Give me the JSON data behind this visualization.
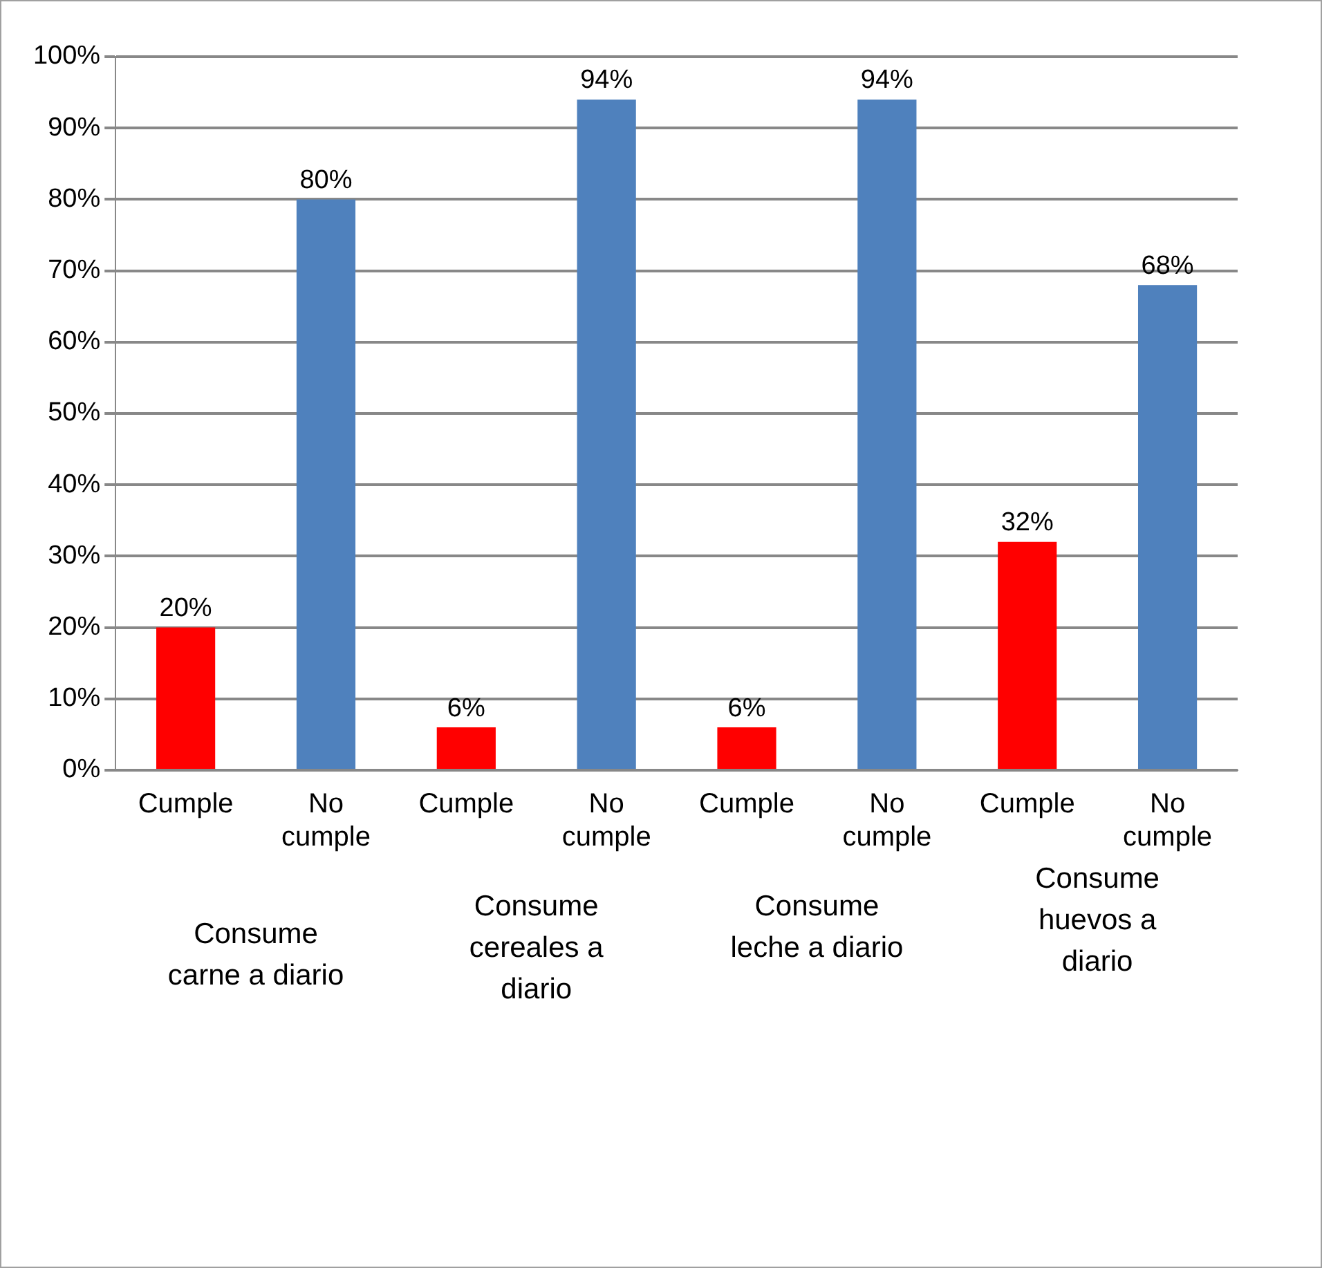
{
  "chart_data": {
    "type": "bar",
    "categories": [
      "Cumple",
      "No cumple",
      "Cumple",
      "No cumple",
      "Cumple",
      "No cumple",
      "Cumple",
      "No cumple"
    ],
    "values": [
      20,
      80,
      6,
      94,
      6,
      94,
      32,
      68
    ],
    "colors": [
      "#ff0000",
      "#4f81bd",
      "#ff0000",
      "#4f81bd",
      "#ff0000",
      "#4f81bd",
      "#ff0000",
      "#4f81bd"
    ],
    "value_labels": [
      "20%",
      "80%",
      "6%",
      "94%",
      "6%",
      "94%",
      "32%",
      "68%"
    ],
    "ylim": [
      0,
      100
    ],
    "yticks": [
      {
        "value": 0,
        "label": "0%"
      },
      {
        "value": 10,
        "label": "10%"
      },
      {
        "value": 20,
        "label": "20%"
      },
      {
        "value": 30,
        "label": "30%"
      },
      {
        "value": 40,
        "label": "40%"
      },
      {
        "value": 50,
        "label": "50%"
      },
      {
        "value": 60,
        "label": "60%"
      },
      {
        "value": 70,
        "label": "70%"
      },
      {
        "value": 80,
        "label": "80%"
      },
      {
        "value": 90,
        "label": "90%"
      },
      {
        "value": 100,
        "label": "100%"
      }
    ],
    "grid": "y",
    "legend": false,
    "annotations": [
      "Consume carne a diario",
      "Consume cereales a diario",
      "Consume leche a diario",
      "Consume huevos a diario"
    ]
  }
}
